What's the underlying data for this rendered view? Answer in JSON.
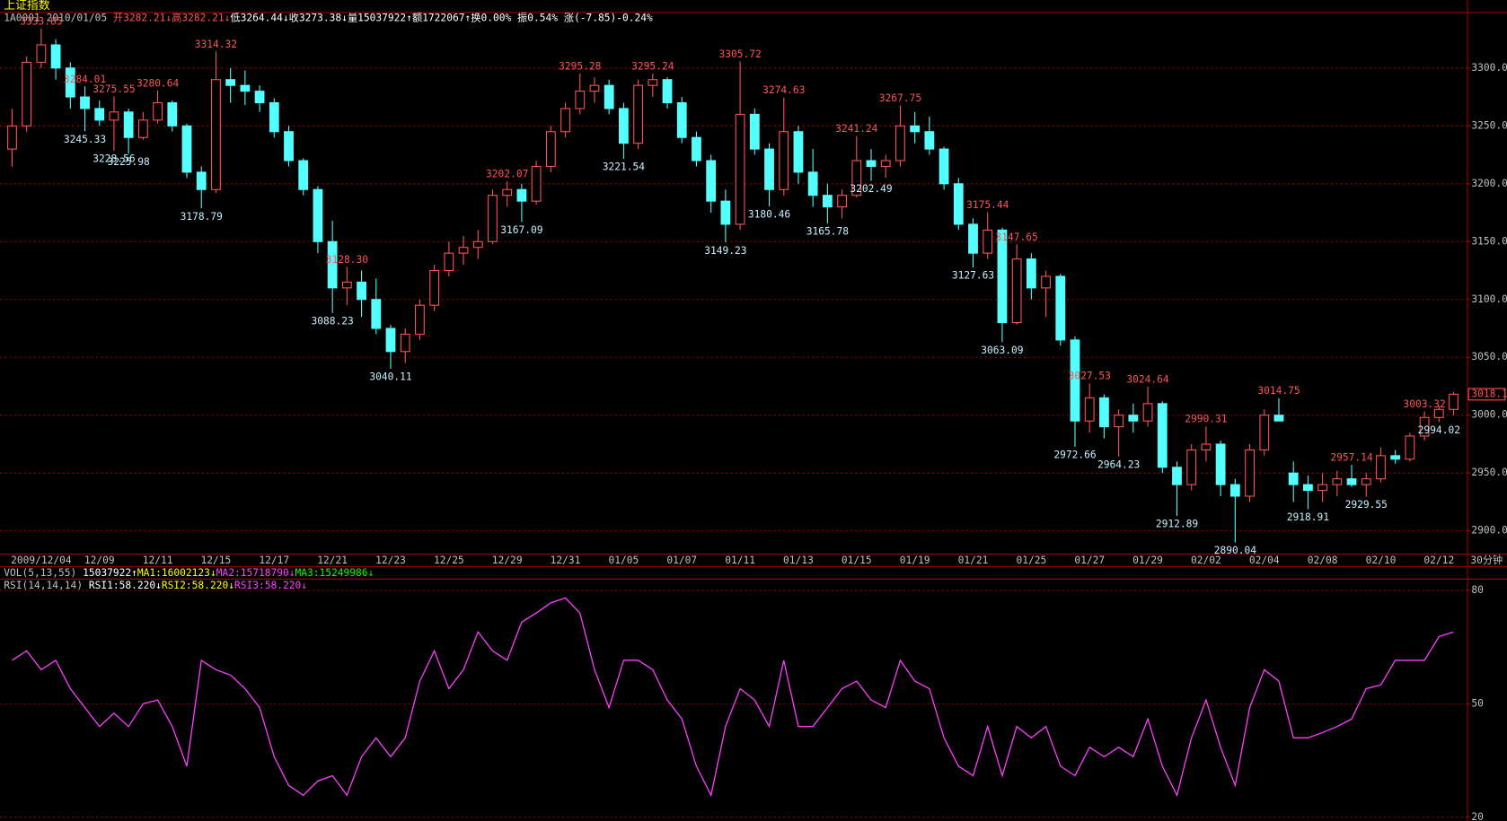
{
  "header": {
    "title": "上证指数",
    "info": [
      "1A0001",
      "2010/01/05",
      "开3282.21↓",
      "高3282.21↓",
      "低3264.44↓",
      "收3273.38↓",
      "量15037922↑",
      "额1722067↑",
      "换0.00%",
      "振0.54%",
      "涨(-7.85)-0.24%"
    ],
    "vol_legend": [
      "VOL(5,13,55)",
      "15037922↑",
      "MA1:16002123↓",
      "MA2:15718790↓",
      "MA3:15249986↓"
    ],
    "period": "30分钟"
  },
  "chart_data": [
    {
      "type": "candlestick",
      "categories": [
        null,
        null,
        "2009/12/04",
        null,
        null,
        null,
        "12/09",
        null,
        null,
        null,
        "12/11",
        null,
        null,
        null,
        "12/15",
        null,
        null,
        null,
        "12/17",
        null,
        null,
        null,
        "12/21",
        null,
        null,
        null,
        "12/23",
        null,
        null,
        null,
        "12/25",
        null,
        null,
        null,
        "12/29",
        null,
        null,
        null,
        "12/31",
        null,
        null,
        null,
        "01/05",
        null,
        null,
        null,
        "01/07",
        null,
        null,
        null,
        "01/11",
        null,
        null,
        null,
        "01/13",
        null,
        null,
        null,
        "01/15",
        null,
        null,
        null,
        "01/19",
        null,
        null,
        null,
        "01/21",
        null,
        null,
        null,
        "01/25",
        null,
        null,
        null,
        "01/27",
        null,
        null,
        null,
        "01/29",
        null,
        null,
        null,
        "02/02",
        null,
        null,
        null,
        "02/04",
        null,
        null,
        null,
        "02/08",
        null,
        null,
        null,
        "02/10",
        null,
        null,
        null,
        "02/12",
        null
      ],
      "open": [
        3230,
        3250,
        3305,
        3320,
        3300,
        3275,
        3265,
        3255,
        3262,
        3240,
        3255,
        3270,
        3250,
        3210,
        3195,
        3290,
        3285,
        3280,
        3270,
        3245,
        3220,
        3195,
        3150,
        3110,
        3115,
        3100,
        3075,
        3055,
        3070,
        3095,
        3125,
        3140,
        3145,
        3150,
        3190,
        3195,
        3185,
        3215,
        3245,
        3265,
        3280,
        3285,
        3265,
        3235,
        3285,
        3290,
        3270,
        3240,
        3220,
        3185,
        3165,
        3260,
        3230,
        3195,
        3245,
        3210,
        3190,
        3180,
        3190,
        3220,
        3215,
        3220,
        3250,
        3245,
        3230,
        3200,
        3165,
        3140,
        3160,
        3080,
        3135,
        3110,
        3120,
        3065,
        2995,
        3015,
        2990,
        3000,
        2995,
        3010,
        2955,
        2940,
        2970,
        2975,
        2940,
        2930,
        2970,
        3000,
        2950,
        2940,
        2935,
        2940,
        2945,
        2940,
        2945,
        2965,
        2962,
        2982,
        2998,
        3005
      ],
      "high": [
        3265,
        3310,
        3333.85,
        3325,
        3305,
        3284.01,
        3272,
        3275.55,
        3265,
        3262,
        3280.64,
        3272,
        3252,
        3215,
        3314.32,
        3300,
        3298,
        3285,
        3274,
        3250,
        3222,
        3198,
        3168,
        3128.3,
        3125,
        3118,
        3078,
        3075,
        3100,
        3130,
        3150,
        3155,
        3160,
        3195,
        3202.07,
        3200,
        3220,
        3250,
        3270,
        3295.28,
        3292,
        3290,
        3270,
        3290,
        3295.24,
        3292,
        3275,
        3245,
        3225,
        3195,
        3305.72,
        3265,
        3235,
        3274.63,
        3250,
        3230,
        3200,
        3195,
        3241.24,
        3230,
        3225,
        3267.75,
        3262,
        3258,
        3232,
        3205,
        3170,
        3175.44,
        3162,
        3147.65,
        3140,
        3125,
        3122,
        3068,
        3027.53,
        3018,
        3005,
        3010,
        3024.64,
        3012,
        2960,
        2975,
        2990.31,
        2978,
        2945,
        2975,
        3005,
        3014.75,
        2960,
        2948,
        2950,
        2952,
        2957.14,
        2950,
        2972,
        2970,
        2985,
        3003.32,
        3008,
        3020
      ],
      "low": [
        3215,
        3245,
        3300,
        3290,
        3265,
        3245.33,
        3250,
        3228.56,
        3225.98,
        3238,
        3252,
        3245,
        3205,
        3178.79,
        3192,
        3270,
        3268,
        3262,
        3240,
        3215,
        3190,
        3140,
        3088.23,
        3095,
        3085,
        3070,
        3040.11,
        3045,
        3065,
        3090,
        3120,
        3130,
        3135,
        3148,
        3180,
        3167.09,
        3182,
        3210,
        3240,
        3260,
        3270,
        3260,
        3221.54,
        3230,
        3275,
        3265,
        3235,
        3215,
        3175,
        3149.23,
        3160,
        3225,
        3180.46,
        3190,
        3200,
        3180,
        3165.78,
        3170,
        3188,
        3202.49,
        3205,
        3215,
        3235,
        3225,
        3195,
        3160,
        3127.63,
        3135,
        3063.09,
        3078,
        3100,
        3085,
        3060,
        2972.66,
        2985,
        2980,
        2964.23,
        2985,
        2990,
        2950,
        2912.89,
        2935,
        2960,
        2930,
        2890.04,
        2925,
        2965,
        2995,
        2925,
        2918.91,
        2925,
        2930,
        2938,
        2929.55,
        2942,
        2958,
        2960,
        2978,
        2994.02,
        3000
      ],
      "close": [
        3250,
        3305,
        3320,
        3300,
        3275,
        3265,
        3255,
        3262,
        3240,
        3255,
        3270,
        3250,
        3210,
        3195,
        3290,
        3285,
        3280,
        3270,
        3245,
        3220,
        3195,
        3150,
        3110,
        3115,
        3100,
        3075,
        3055,
        3070,
        3095,
        3125,
        3140,
        3145,
        3150,
        3190,
        3195,
        3185,
        3215,
        3245,
        3265,
        3280,
        3285,
        3265,
        3235,
        3285,
        3290,
        3270,
        3240,
        3220,
        3185,
        3165,
        3260,
        3230,
        3195,
        3245,
        3210,
        3190,
        3180,
        3190,
        3220,
        3215,
        3220,
        3250,
        3245,
        3230,
        3200,
        3165,
        3140,
        3160,
        3080,
        3135,
        3110,
        3120,
        3065,
        2995,
        3015,
        2990,
        3000,
        2995,
        3010,
        2955,
        2940,
        2970,
        2975,
        2940,
        2930,
        2970,
        3000,
        2995,
        2940,
        2935,
        2940,
        2945,
        2940,
        2945,
        2965,
        2962,
        2982,
        2998,
        3005,
        3018.1
      ],
      "up_color": "#ff5454",
      "down_color": "#54ffff",
      "ylim": [
        2880,
        3348
      ],
      "yticks": [
        {
          "value": 2900,
          "label": "2900.0"
        },
        {
          "value": 2950,
          "label": "2950.0"
        },
        {
          "value": 3000,
          "label": "3000.0"
        },
        {
          "value": 3050,
          "label": "3050.0"
        },
        {
          "value": 3100,
          "label": "3100.0"
        },
        {
          "value": 3150,
          "label": "3150.0"
        },
        {
          "value": 3200,
          "label": "3200.0"
        },
        {
          "value": 3250,
          "label": "3250.0"
        },
        {
          "value": 3300,
          "label": "3300.0"
        }
      ],
      "grid": true,
      "last_price": 3018.1,
      "annotations": [
        {
          "x": 2,
          "value": 3333.85
        },
        {
          "x": 5,
          "value": 3284.01
        },
        {
          "x": 5,
          "value": 3245.33
        },
        {
          "x": 7,
          "value": 3275.55
        },
        {
          "x": 7,
          "value": 3228.56
        },
        {
          "x": 8,
          "value": 3225.98
        },
        {
          "x": 10,
          "value": 3280.64
        },
        {
          "x": 13,
          "value": 3178.79
        },
        {
          "x": 14,
          "value": 3314.32
        },
        {
          "x": 22,
          "value": 3088.23
        },
        {
          "x": 23,
          "value": 3128.3,
          "label": "3128.30"
        },
        {
          "x": 26,
          "value": 3040.11
        },
        {
          "x": 34,
          "value": 3202.07
        },
        {
          "x": 35,
          "value": 3167.09
        },
        {
          "x": 39,
          "value": 3295.28
        },
        {
          "x": 42,
          "value": 3221.54
        },
        {
          "x": 44,
          "value": 3295.24
        },
        {
          "x": 49,
          "value": 3149.23
        },
        {
          "x": 50,
          "value": 3305.72
        },
        {
          "x": 52,
          "value": 3180.46
        },
        {
          "x": 53,
          "value": 3274.63
        },
        {
          "x": 56,
          "value": 3165.78
        },
        {
          "x": 58,
          "value": 3241.24
        },
        {
          "x": 59,
          "value": 3202.49
        },
        {
          "x": 61,
          "value": 3267.75
        },
        {
          "x": 66,
          "value": 3127.63
        },
        {
          "x": 67,
          "value": 3175.44
        },
        {
          "x": 68,
          "value": 3063.09
        },
        {
          "x": 69,
          "value": 3147.65
        },
        {
          "x": 73,
          "value": 2972.66
        },
        {
          "x": 74,
          "value": 3027.53
        },
        {
          "x": 76,
          "value": 2964.23
        },
        {
          "x": 78,
          "value": 3024.64
        },
        {
          "x": 80,
          "value": 2912.89
        },
        {
          "x": 82,
          "value": 2990.31
        },
        {
          "x": 84,
          "value": 2890.04
        },
        {
          "x": 87,
          "value": 3014.75
        },
        {
          "x": 89,
          "value": 2918.91
        },
        {
          "x": 92,
          "value": 2957.14
        },
        {
          "x": 93,
          "value": 2929.55
        },
        {
          "x": 97,
          "value": 3003.32
        },
        {
          "x": 98,
          "value": 2994.02
        }
      ]
    },
    {
      "type": "line",
      "legend": [
        "RSI(14,14,14)",
        "RSI1:58.220↓",
        "RSI2:58.220↓",
        "RSI3:58.220↓"
      ],
      "series": [
        {
          "color": "#ff40ff",
          "values": [
            61.5,
            64,
            59,
            61.5,
            54,
            49,
            44,
            47.5,
            44,
            50,
            51,
            44,
            33.5,
            61.5,
            59,
            57.6,
            54,
            49,
            36,
            28.4,
            25.8,
            29.6,
            31,
            25.8,
            36,
            41,
            36,
            41,
            56,
            64,
            54,
            59,
            69,
            64,
            61.5,
            71.6,
            74,
            76.7,
            78,
            74,
            59,
            49,
            61.5,
            61.5,
            59,
            51,
            46,
            33.5,
            25.8,
            44,
            54,
            51,
            44,
            61.5,
            44,
            44,
            49,
            54,
            56,
            51,
            49,
            61.5,
            56,
            54,
            41,
            33.5,
            31,
            44,
            31,
            44,
            41,
            44,
            33.5,
            31,
            38.5,
            36,
            38.5,
            36,
            46,
            33.5,
            25.8,
            41,
            51,
            38.5,
            28.4,
            49,
            59,
            56,
            41,
            41,
            42.4,
            44,
            46,
            54,
            55,
            61.5,
            61.5,
            61.5,
            67.8,
            69
          ]
        }
      ],
      "ylim": [
        19,
        83
      ],
      "yticks": [
        20,
        50,
        80
      ],
      "grid": true
    }
  ]
}
